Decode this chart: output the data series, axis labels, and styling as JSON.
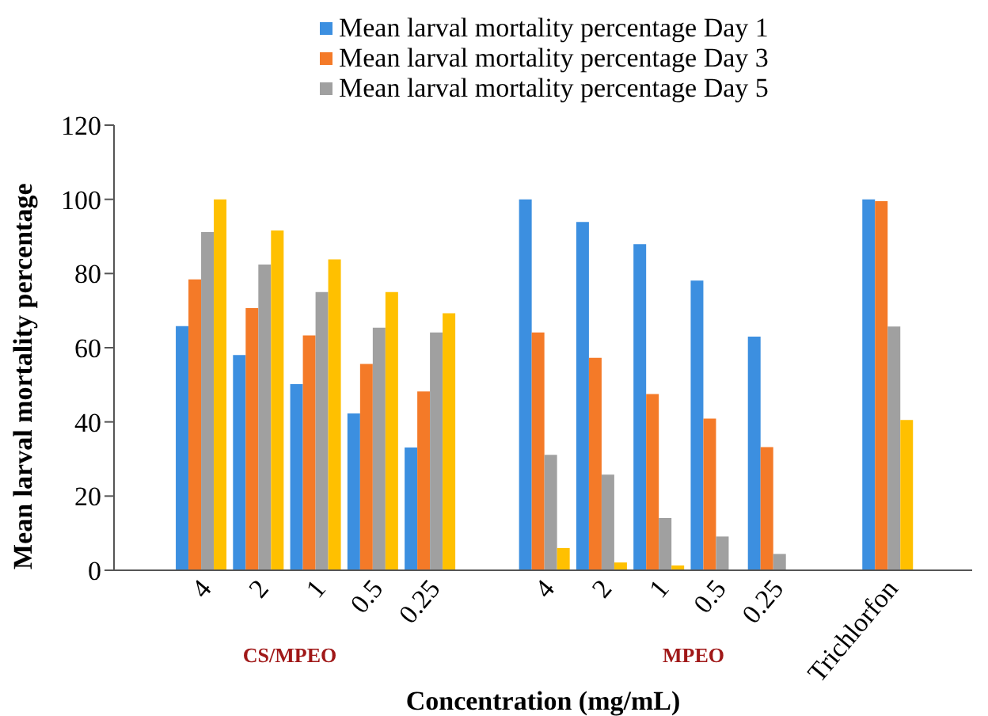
{
  "chart_data": {
    "type": "bar",
    "xlabel": "Concentration (mg/mL)",
    "ylabel": "Mean larval mortality percentage",
    "categories": [
      null,
      "4",
      "2",
      "1",
      "0.5",
      "0.25",
      null,
      "4",
      "2",
      "1",
      "0.5",
      "0.25",
      null,
      "Trichlorfon",
      null
    ],
    "series": [
      {
        "name": "Mean larval mortality percentage Day 1",
        "color": "#3c8fe0",
        "values": [
          null,
          65.8,
          58.0,
          50.2,
          42.3,
          33.1,
          null,
          100,
          93.9,
          87.9,
          78.1,
          63.0,
          null,
          100,
          null
        ]
      },
      {
        "name": "Mean larval mortality percentage Day 3",
        "color": "#f47a28",
        "values": [
          null,
          78.4,
          70.7,
          63.3,
          55.6,
          48.2,
          null,
          64.1,
          57.3,
          47.5,
          40.9,
          33.2,
          null,
          99.5,
          null
        ]
      },
      {
        "name": "Mean larval mortality percentage Day 5",
        "color": "#a0a0a0",
        "values": [
          null,
          91.2,
          82.4,
          75.0,
          65.4,
          64.1,
          null,
          31.1,
          25.8,
          14.1,
          9.1,
          4.4,
          null,
          65.7,
          null
        ]
      },
      {
        "color": "#ffc000",
        "values": [
          null,
          100,
          91.6,
          83.8,
          75.0,
          69.3,
          null,
          6.0,
          2.1,
          1.3,
          0,
          0,
          null,
          40.5,
          null
        ]
      }
    ],
    "annotations": [
      "CS/MPEO",
      "MPEO"
    ],
    "ylim": [
      0,
      120
    ],
    "yticks": [
      0,
      20,
      40,
      60,
      80,
      100,
      120
    ],
    "grid": false,
    "legend": "top"
  }
}
